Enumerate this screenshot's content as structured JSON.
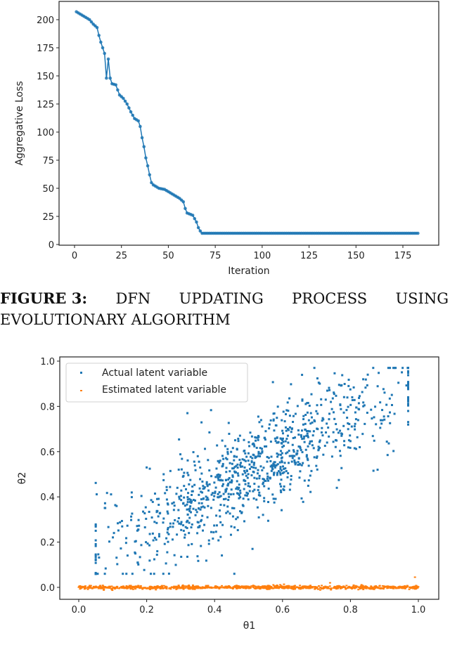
{
  "caption": {
    "label": "FIGURE 3:",
    "words_line1": [
      "DFN",
      "UPDATING",
      "PROCESS",
      "USING"
    ],
    "line2": "EVOLUTIONARY ALGORITHM"
  },
  "chart_data": [
    {
      "type": "line",
      "title": "",
      "xlabel": "Iteration",
      "ylabel": "Aggregative Loss",
      "xlim": [
        -7,
        190
      ],
      "ylim": [
        0,
        215
      ],
      "xticks": [
        0,
        25,
        50,
        75,
        100,
        125,
        150,
        175
      ],
      "yticks": [
        0,
        25,
        50,
        75,
        100,
        125,
        150,
        175,
        200
      ],
      "color": "#1f77b4",
      "marker": "dot",
      "x": [
        1,
        3,
        5,
        8,
        10,
        12,
        13,
        14,
        15,
        16,
        17,
        18,
        19,
        20,
        22,
        24,
        26,
        28,
        30,
        32,
        34,
        35,
        36,
        37,
        38,
        39,
        40,
        41,
        42,
        45,
        48,
        52,
        56,
        58,
        59,
        60,
        63,
        65,
        66,
        67,
        68,
        183
      ],
      "y": [
        207,
        205,
        203,
        200,
        196,
        193,
        186,
        180,
        175,
        170,
        148,
        165,
        148,
        143,
        142,
        133,
        130,
        125,
        118,
        112,
        110,
        105,
        95,
        87,
        77,
        70,
        62,
        55,
        53,
        50,
        49,
        45,
        41,
        38,
        32,
        28,
        26,
        20,
        15,
        12,
        10,
        10
      ]
    },
    {
      "type": "scatter",
      "xlabel": "θ1",
      "ylabel": "θ2",
      "xlim": [
        -0.05,
        1.05
      ],
      "ylim": [
        -0.03,
        1.02
      ],
      "xticks": [
        "0.0",
        "0.2",
        "0.4",
        "0.6",
        "0.8",
        "1.0"
      ],
      "yticks": [
        "0.0",
        "0.2",
        "0.4",
        "0.6",
        "0.8",
        "1.0"
      ],
      "legend": {
        "placement": "upper-left",
        "entries": [
          "Actual latent variable",
          "Estimated latent variable"
        ]
      },
      "series": [
        {
          "name": "Actual latent variable",
          "color": "#1f77b4",
          "n": 1000,
          "model": "theta2 = 0.1 + 0.82*theta1 + noise(sd 0.11)",
          "theta1_range": [
            0.05,
            0.97
          ],
          "outliers": [
            [
              0.32,
              0.77
            ],
            [
              0.2,
              0.53
            ],
            [
              0.25,
              0.5
            ],
            [
              0.76,
              0.44
            ],
            [
              0.88,
              0.52
            ]
          ]
        },
        {
          "name": "Estimated latent variable",
          "color": "#ff7f0e",
          "n": 1000,
          "model": "theta2 ≈ 0 (±0.01)",
          "theta1_range": [
            0.0,
            1.0
          ],
          "outliers": [
            [
              0.74,
              0.02
            ],
            [
              0.99,
              0.045
            ]
          ]
        }
      ]
    }
  ]
}
